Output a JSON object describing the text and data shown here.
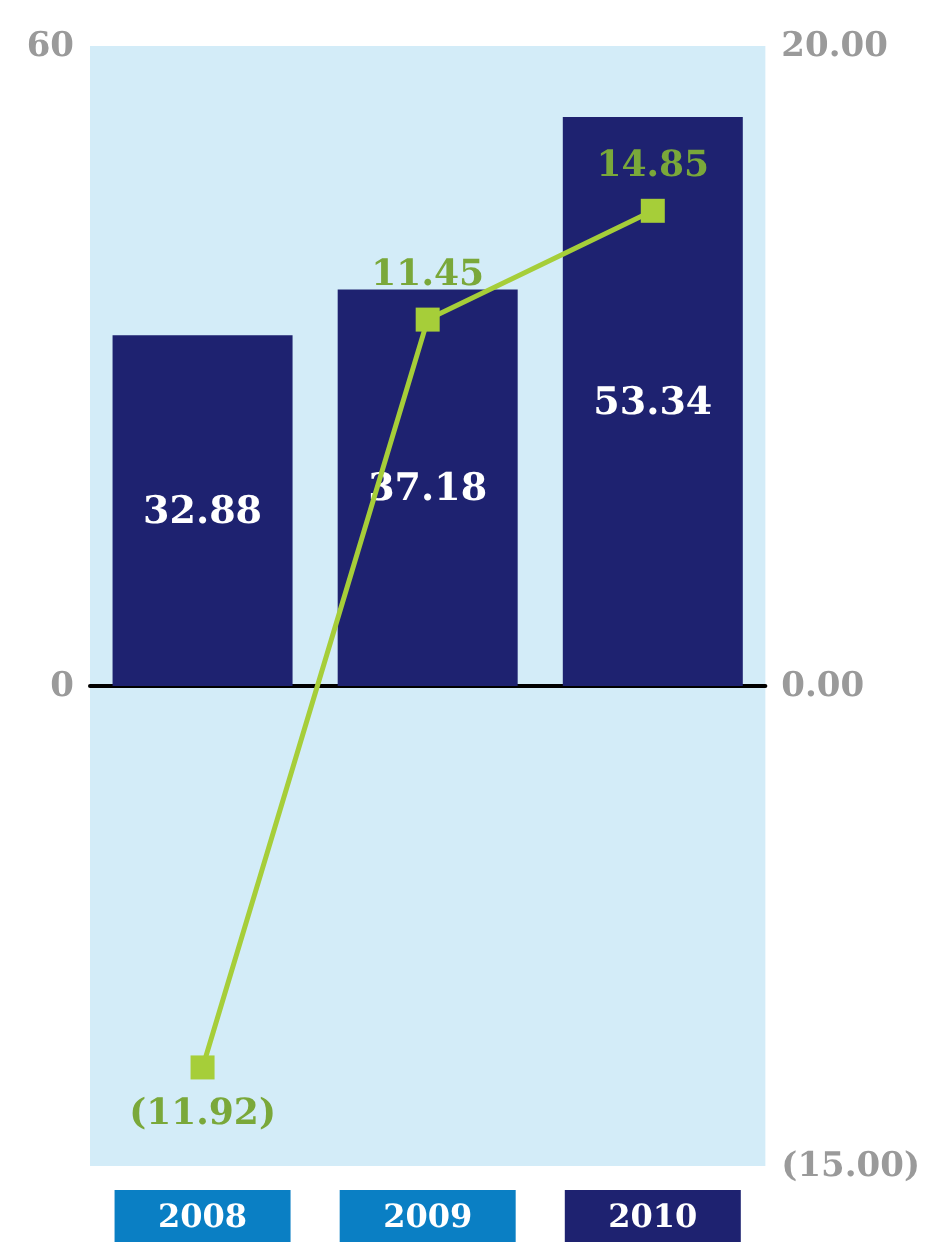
{
  "chart_data": {
    "type": "bar",
    "categories": [
      "2008",
      "2009",
      "2010"
    ],
    "series": [
      {
        "color": "#1e2270",
        "values": [
          32.88,
          37.18,
          53.34
        ],
        "value_labels": [
          "32.88",
          "37.18",
          "53.34"
        ]
      },
      {
        "type": "line",
        "axis": "y2",
        "color": "#a6ce39",
        "values": [
          -11.92,
          11.45,
          14.85
        ],
        "value_labels": [
          "(11.92)",
          "11.45",
          "14.85"
        ]
      }
    ],
    "ylim": [
      -45,
      60
    ],
    "yticks": [
      0,
      60
    ],
    "y2lim": [
      -15,
      20
    ],
    "y2ticks": [
      {
        "value": -15,
        "label": "(15.00)"
      },
      {
        "value": 0,
        "label": "0.00"
      },
      {
        "value": 20,
        "label": "20.00"
      }
    ],
    "marker": "square",
    "line_style": "solid"
  }
}
